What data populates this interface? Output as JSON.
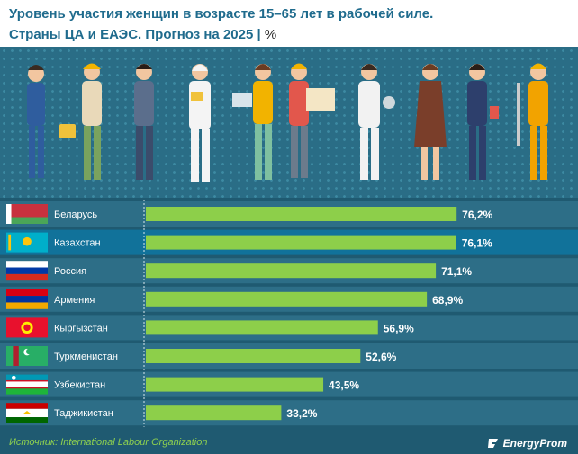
{
  "header": {
    "title_line1": "Уровень участия женщин в возрасте 15–65 лет в рабочей силе.",
    "title_line2": "Страны ЦА и ЕАЭС. Прогноз на 2025",
    "unit": "%"
  },
  "chart_data": {
    "type": "bar",
    "orientation": "horizontal",
    "categories": [
      "Беларусь",
      "Казахстан",
      "Россия",
      "Армения",
      "Кыргызстан",
      "Туркменистан",
      "Узбекистан",
      "Таджикистан"
    ],
    "values": [
      76.2,
      76.1,
      71.1,
      68.9,
      56.9,
      52.6,
      43.5,
      33.2
    ],
    "value_labels": [
      "76,2%",
      "76,1%",
      "71,1%",
      "68,9%",
      "56,9%",
      "52,6%",
      "43,5%",
      "33,2%"
    ],
    "highlighted": "Казахстан",
    "xlim": [
      0,
      100
    ],
    "grid": false,
    "title": "Уровень участия женщин в возрасте 15–65 лет в рабочей силе. Страны ЦА и ЕАЭС. Прогноз на 2025",
    "unit": "%"
  },
  "colors": {
    "background": "#1f5a71",
    "row": "#2d6e87",
    "row_highlight": "#11729a",
    "bar": "#8dcf4a",
    "title": "#1f6b8d",
    "source": "#8fd14f"
  },
  "flags": [
    "belarus-flag",
    "kazakhstan-flag",
    "russia-flag",
    "armenia-flag",
    "kyrgyzstan-flag",
    "turkmenistan-flag",
    "uzbekistan-flag",
    "tajikistan-flag"
  ],
  "footer": {
    "source": "Источник: International Labour Organization",
    "brand": "EnergyProm"
  }
}
